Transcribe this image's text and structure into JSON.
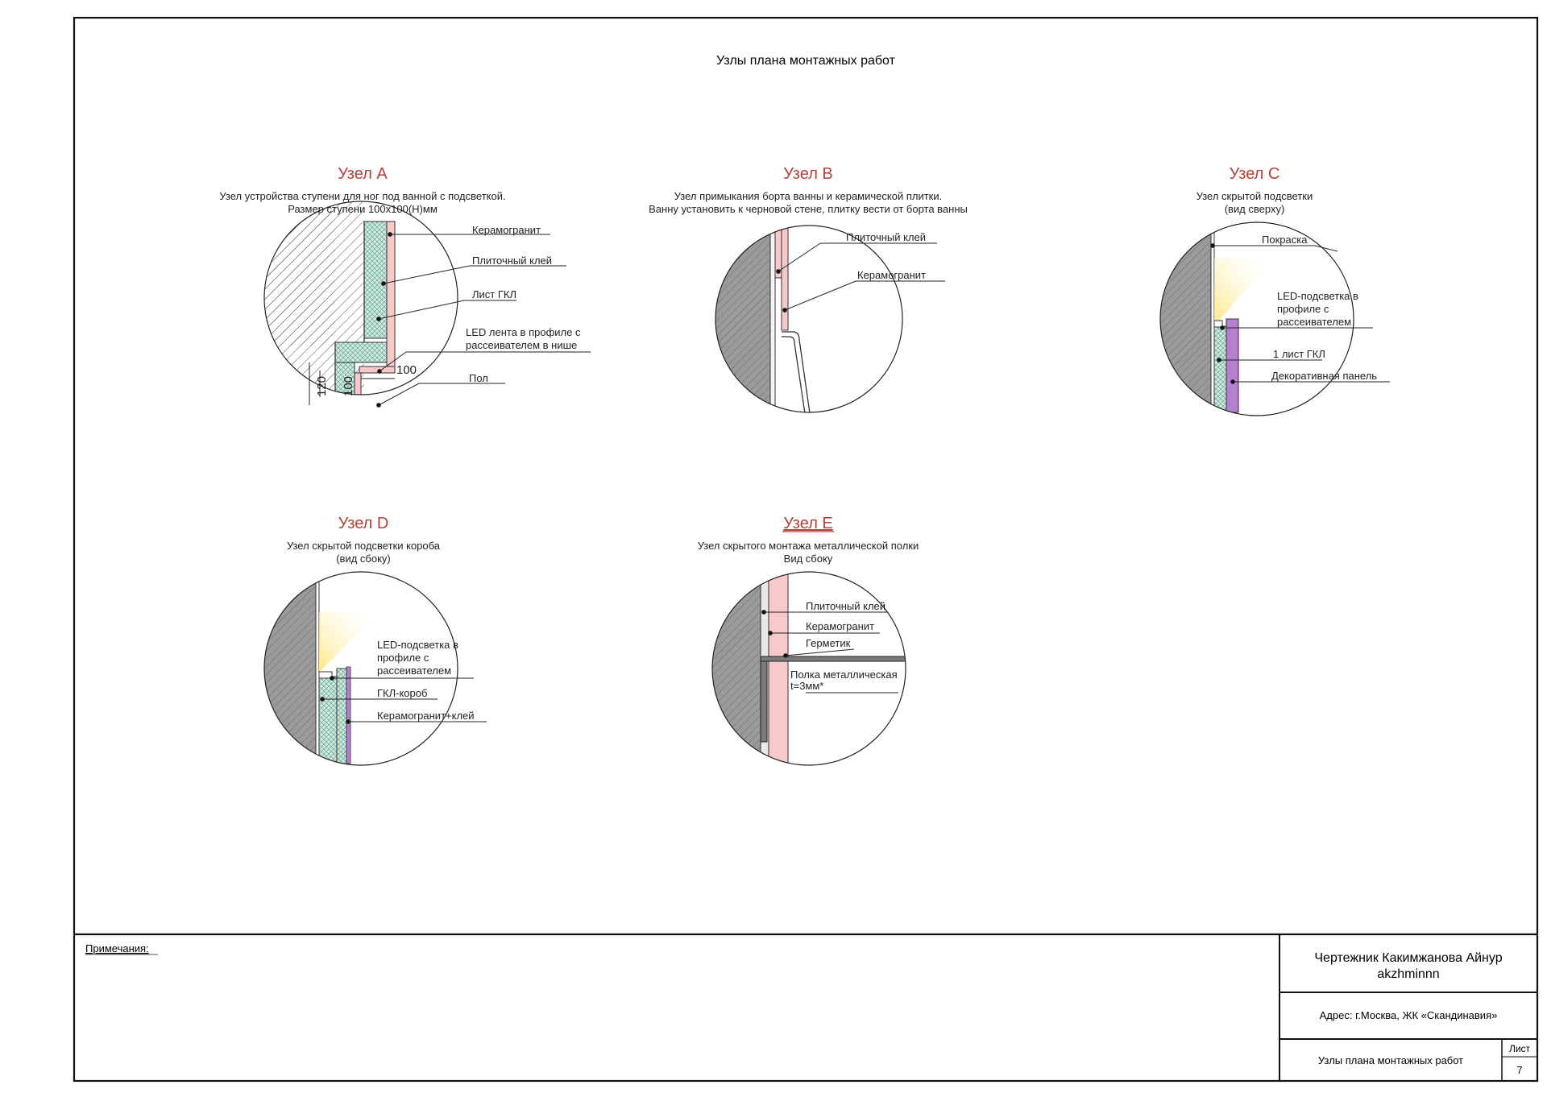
{
  "sheet": {
    "title": "Узлы плана монтажных работ"
  },
  "nodes": [
    {
      "id": "A",
      "title": "Узел A",
      "desc1": "Узел устройства ступени для ног под ванной с подсветкой.",
      "desc2": "Размер ступени 100х100(Н)мм",
      "labels": [
        "Керамогранит",
        "Плиточный клей",
        "Лист ГКЛ",
        "LED лента в профиле с",
        "рассеивателем в нише",
        "Пол"
      ],
      "dims": [
        "100",
        "120",
        "100"
      ]
    },
    {
      "id": "B",
      "title": "Узел B",
      "desc1": "Узел примыкания борта ванны и керамической плитки.",
      "desc2": "Ванну установить к черновой стене, плитку вести от борта ванны",
      "labels": [
        "Плиточный клей",
        "Керамогранит"
      ]
    },
    {
      "id": "C",
      "title": "Узел C",
      "desc1": "Узел скрытой подсветки",
      "desc2": "(вид сверху)",
      "labels": [
        "Покраска",
        "LED-подсветка в",
        "профиле с",
        "рассеивателем",
        "1 лист ГКЛ",
        "Декоративная панель"
      ]
    },
    {
      "id": "D",
      "title": "Узел D",
      "desc1": "Узел скрытой подсветки короба",
      "desc2": "(вид сбоку)",
      "labels": [
        "LED-подсветка в",
        "профиле с",
        "рассеивателем",
        "ГКЛ-короб",
        "Керамогранит+клей"
      ]
    },
    {
      "id": "E",
      "title": "Узел E",
      "desc1": "Узел скрытого монтажа металлической полки",
      "desc2": "Вид сбоку",
      "labels": [
        "Плиточный клей",
        "Керамогранит",
        "Герметик",
        "Полка металлическая",
        "t=3мм*"
      ]
    }
  ],
  "title_block": {
    "notes_label": "Примечания:",
    "author": "Чертежник Какимжанова Айнур",
    "author_handle": "akzhminnn",
    "address": "Адрес: г.Москва, ЖК «Скандинавия»",
    "sheet_name": "Узлы плана монтажных работ",
    "sheet_label": "Лист",
    "sheet_number": "7"
  },
  "colors": {
    "title_red": "#b5403a",
    "tile_pink": "#f8c9c9",
    "gkl_green": "#cfe9df",
    "panel_purple": "#b77fd0",
    "wall_grey": "#9a9a9a",
    "led_yellow": "#fff3a0"
  }
}
